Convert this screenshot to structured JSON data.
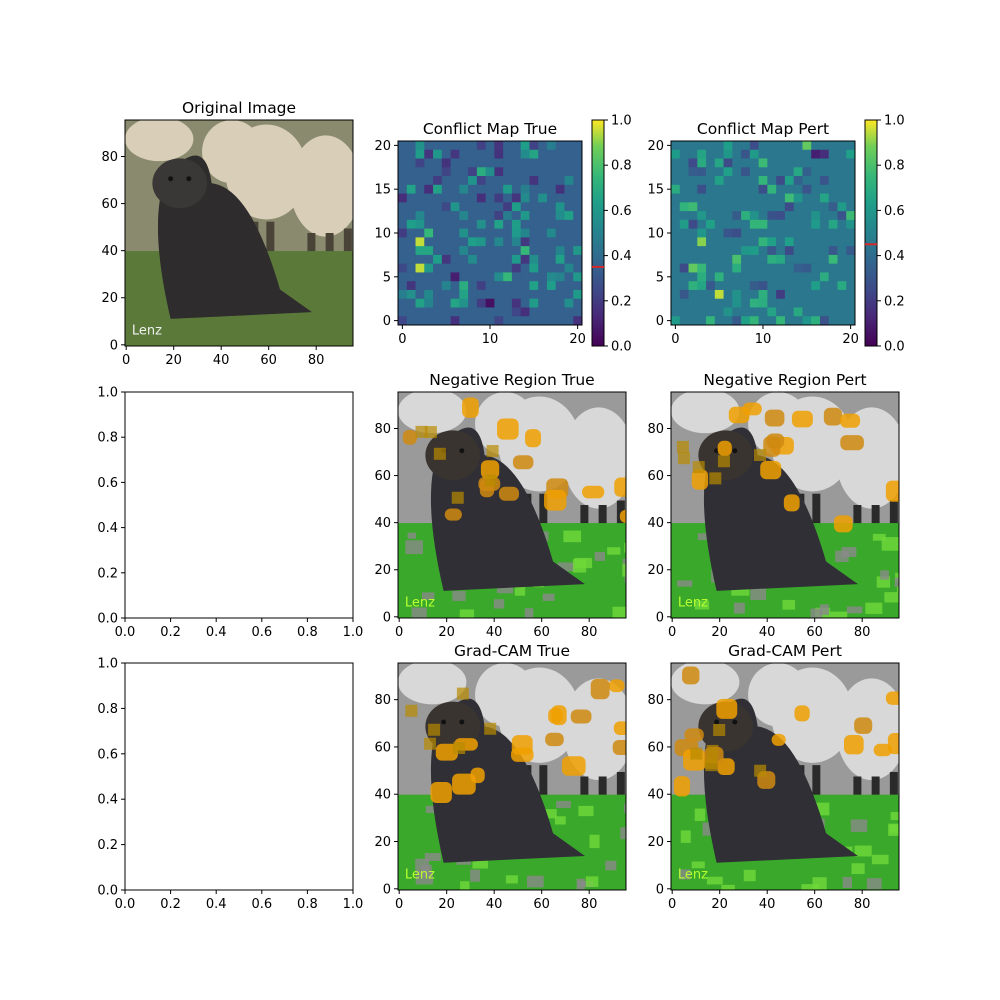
{
  "figure": {
    "panels": [
      {
        "title": "Original Image",
        "kind": "image",
        "scene": "original",
        "watermark": "Lenz",
        "xticks": [
          "0",
          "20",
          "40",
          "60",
          "80"
        ],
        "yticks": [
          "0",
          "20",
          "40",
          "60",
          "80"
        ],
        "xlim": [
          -0.5,
          95.5
        ],
        "ylim": [
          95.5,
          -0.5
        ]
      },
      {
        "title": "Conflict Map True",
        "kind": "heatmap",
        "xticks": [
          "0",
          "10",
          "20"
        ],
        "yticks": [
          "0",
          "5",
          "10",
          "15",
          "20"
        ],
        "xlim": [
          -0.5,
          20.5
        ],
        "ylim": [
          20.5,
          -0.5
        ],
        "colorbar": {
          "ticks": [
            "0.0",
            "0.2",
            "0.4",
            "0.6",
            "0.8",
            "1.0"
          ],
          "marker_value": 0.35,
          "marker_color": "#d62728"
        }
      },
      {
        "title": "Conflict Map Pert",
        "kind": "heatmap",
        "xticks": [
          "0",
          "10",
          "20"
        ],
        "yticks": [
          "0",
          "5",
          "10",
          "15",
          "20"
        ],
        "xlim": [
          -0.5,
          20.5
        ],
        "ylim": [
          20.5,
          -0.5
        ],
        "colorbar": {
          "ticks": [
            "0.0",
            "0.2",
            "0.4",
            "0.6",
            "0.8",
            "1.0"
          ],
          "marker_value": 0.45,
          "marker_color": "#d62728"
        }
      },
      {
        "title": "",
        "kind": "empty",
        "xticks": [
          "0.0",
          "0.2",
          "0.4",
          "0.6",
          "0.8",
          "1.0"
        ],
        "yticks": [
          "0.0",
          "0.2",
          "0.4",
          "0.6",
          "0.8",
          "1.0"
        ],
        "xlim": [
          0,
          1
        ],
        "ylim": [
          1,
          0
        ]
      },
      {
        "title": "Negative Region True",
        "kind": "image",
        "scene": "overlay",
        "watermark": "Lenz",
        "xticks": [
          "0",
          "20",
          "40",
          "60",
          "80"
        ],
        "yticks": [
          "0",
          "20",
          "40",
          "60",
          "80"
        ],
        "xlim": [
          -0.5,
          95.5
        ],
        "ylim": [
          95.5,
          -0.5
        ]
      },
      {
        "title": "Negative Region Pert",
        "kind": "image",
        "scene": "overlay",
        "watermark": "Lenz",
        "xticks": [
          "0",
          "20",
          "40",
          "60",
          "80"
        ],
        "yticks": [
          "0",
          "20",
          "40",
          "60",
          "80"
        ],
        "xlim": [
          -0.5,
          95.5
        ],
        "ylim": [
          95.5,
          -0.5
        ]
      },
      {
        "title": "",
        "kind": "empty",
        "xticks": [
          "0.0",
          "0.2",
          "0.4",
          "0.6",
          "0.8",
          "1.0"
        ],
        "yticks": [
          "0.0",
          "0.2",
          "0.4",
          "0.6",
          "0.8",
          "1.0"
        ],
        "xlim": [
          0,
          1
        ],
        "ylim": [
          1,
          0
        ]
      },
      {
        "title": "Grad-CAM True",
        "kind": "image",
        "scene": "overlay",
        "watermark": "Lenz",
        "xticks": [
          "0",
          "20",
          "40",
          "60",
          "80"
        ],
        "yticks": [
          "0",
          "20",
          "40",
          "60",
          "80"
        ],
        "xlim": [
          -0.5,
          95.5
        ],
        "ylim": [
          95.5,
          -0.5
        ]
      },
      {
        "title": "Grad-CAM Pert",
        "kind": "image",
        "scene": "overlay",
        "watermark": "Lenz",
        "xticks": [
          "0",
          "20",
          "40",
          "60",
          "80"
        ],
        "yticks": [
          "0",
          "20",
          "40",
          "60",
          "80"
        ],
        "xlim": [
          -0.5,
          95.5
        ],
        "ylim": [
          95.5,
          -0.5
        ]
      }
    ]
  },
  "chart_data": [
    {
      "type": "heatmap",
      "title": "Conflict Map True",
      "rows": 21,
      "cols": 21,
      "colormap": "viridis",
      "range": [
        0.0,
        1.0
      ],
      "base_value": 0.35,
      "bright_cells": [
        [
          2,
          11,
          0.95
        ],
        [
          2,
          14,
          0.95
        ],
        [
          3,
          10,
          0.75
        ],
        [
          3,
          14,
          0.6
        ],
        [
          7,
          16,
          0.7
        ],
        [
          9,
          3,
          0.7
        ],
        [
          12,
          15,
          0.75
        ],
        [
          14,
          12,
          0.75
        ]
      ],
      "dark_cells": [
        [
          6,
          15,
          0.1
        ],
        [
          10,
          18,
          0.05
        ],
        [
          0,
          6,
          0.15
        ]
      ]
    },
    {
      "type": "heatmap",
      "title": "Conflict Map Pert",
      "rows": 21,
      "cols": 21,
      "colormap": "viridis",
      "range": [
        0.0,
        1.0
      ],
      "base_value": 0.45,
      "bright_cells": [
        [
          5,
          17,
          0.95
        ],
        [
          3,
          11,
          0.9
        ],
        [
          2,
          14,
          0.85
        ],
        [
          7,
          13,
          0.8
        ],
        [
          15,
          0,
          0.85
        ],
        [
          3,
          15,
          0.7
        ],
        [
          10,
          18,
          0.7
        ]
      ],
      "dark_cells": [
        [
          16,
          1,
          0.1
        ],
        [
          17,
          1,
          0.15
        ],
        [
          12,
          17,
          0.2
        ]
      ]
    }
  ]
}
